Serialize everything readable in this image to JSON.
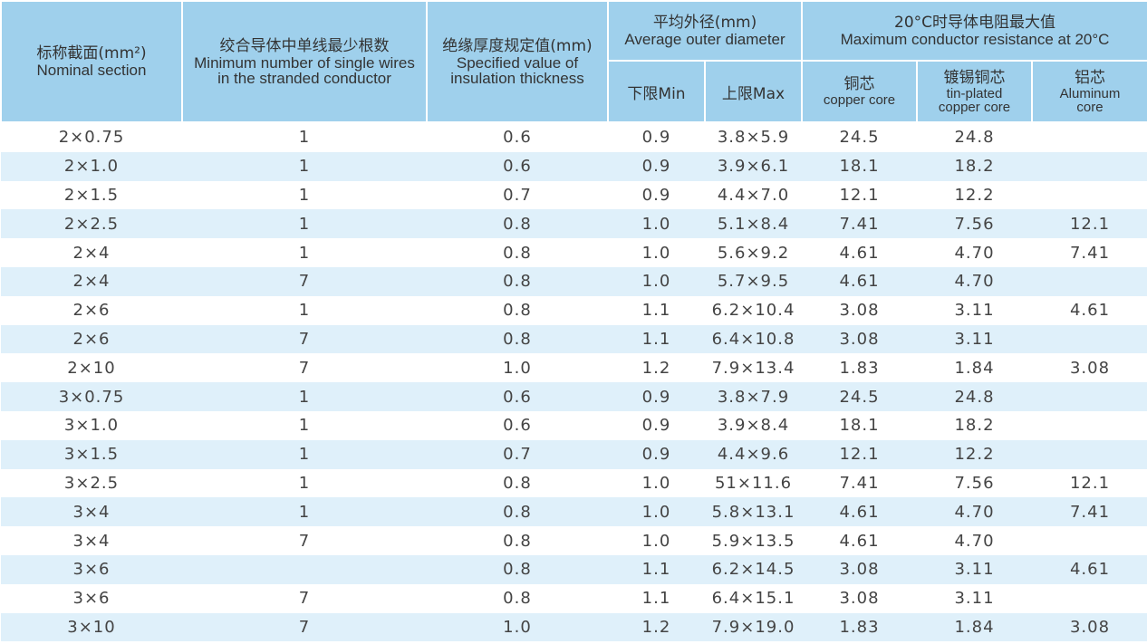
{
  "colors": {
    "header_bg": "#9fd0ec",
    "stripe_bg": "#dff0fa",
    "text": "#444444"
  },
  "header": {
    "nominal_zh": "标称截面(mm²)",
    "nominal_en": "Nominal section",
    "wires_zh": "绞合导体中单线最少根数",
    "wires_en": "Minimum number of single wires in the stranded conductor",
    "insulation_zh": "绝缘厚度规定值(mm)",
    "insulation_en": "Specified value of insulation thickness",
    "diameter_zh": "平均外径(mm)",
    "diameter_en": "Average outer diameter",
    "resistance_zh": "20°C时导体电阻最大值",
    "resistance_en": "Maximum conductor resistance at 20°C",
    "min_label": "下限Min",
    "max_label": "上限Max",
    "copper_zh": "铜芯",
    "copper_en": "copper core",
    "tinned_zh": "镀锡铜芯",
    "tinned_en": "tin-plated copper core",
    "aluminum_zh": "铝芯",
    "aluminum_en": "Aluminum core"
  },
  "rows": [
    [
      "2×0.75",
      "1",
      "0.6",
      "0.9",
      "3.8×5.9",
      "24.5",
      "24.8",
      ""
    ],
    [
      "2×1.0",
      "1",
      "0.6",
      "0.9",
      "3.9×6.1",
      "18.1",
      "18.2",
      ""
    ],
    [
      "2×1.5",
      "1",
      "0.7",
      "0.9",
      "4.4×7.0",
      "12.1",
      "12.2",
      ""
    ],
    [
      "2×2.5",
      "1",
      "0.8",
      "1.0",
      "5.1×8.4",
      "7.41",
      "7.56",
      "12.1"
    ],
    [
      "2×4",
      "1",
      "0.8",
      "1.0",
      "5.6×9.2",
      "4.61",
      "4.70",
      "7.41"
    ],
    [
      "2×4",
      "7",
      "0.8",
      "1.0",
      "5.7×9.5",
      "4.61",
      "4.70",
      ""
    ],
    [
      "2×6",
      "1",
      "0.8",
      "1.1",
      "6.2×10.4",
      "3.08",
      "3.11",
      "4.61"
    ],
    [
      "2×6",
      "7",
      "0.8",
      "1.1",
      "6.4×10.8",
      "3.08",
      "3.11",
      ""
    ],
    [
      "2×10",
      "7",
      "1.0",
      "1.2",
      "7.9×13.4",
      "1.83",
      "1.84",
      "3.08"
    ],
    [
      "3×0.75",
      "1",
      "0.6",
      "0.9",
      "3.8×7.9",
      "24.5",
      "24.8",
      ""
    ],
    [
      "3×1.0",
      "1",
      "0.6",
      "0.9",
      "3.9×8.4",
      "18.1",
      "18.2",
      ""
    ],
    [
      "3×1.5",
      "1",
      "0.7",
      "0.9",
      "4.4×9.6",
      "12.1",
      "12.2",
      ""
    ],
    [
      "3×2.5",
      "1",
      "0.8",
      "1.0",
      "51×11.6",
      "7.41",
      "7.56",
      "12.1"
    ],
    [
      "3×4",
      "1",
      "0.8",
      "1.0",
      "5.8×13.1",
      "4.61",
      "4.70",
      "7.41"
    ],
    [
      "3×4",
      "7",
      "0.8",
      "1.0",
      "5.9×13.5",
      "4.61",
      "4.70",
      ""
    ],
    [
      "3×6",
      "",
      "0.8",
      "1.1",
      "6.2×14.5",
      "3.08",
      "3.11",
      "4.61"
    ],
    [
      "3×6",
      "7",
      "0.8",
      "1.1",
      "6.4×15.1",
      "3.08",
      "3.11",
      ""
    ],
    [
      "3×10",
      "7",
      "1.0",
      "1.2",
      "7.9×19.0",
      "1.83",
      "1.84",
      "3.08"
    ]
  ]
}
